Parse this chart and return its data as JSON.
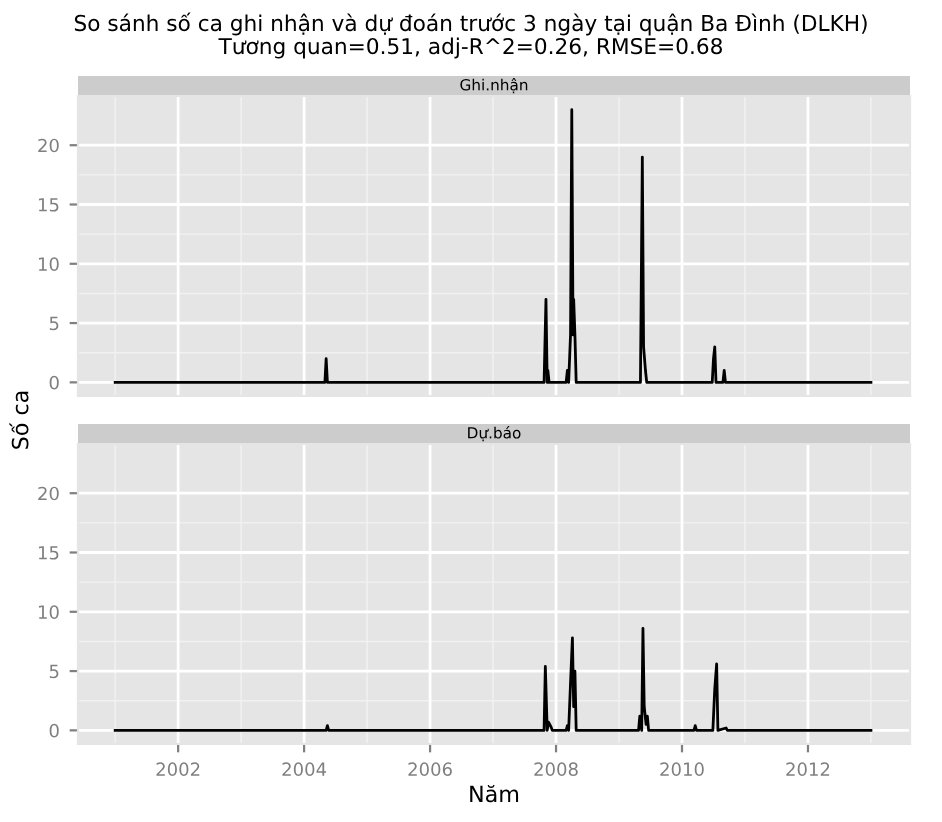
{
  "chart_data": [
    {
      "type": "line",
      "title": "So sánh số ca ghi nhận và dự đoán trước 3 ngày tại quận Ba Đình (DLKH)",
      "subtitle": "Tương quan=0.51, adj-R^2=0.26, RMSE=0.68",
      "annotations": [
        "Ghi.nhận"
      ],
      "ylabel": "Số ca",
      "series": [
        {
          "color": "#000000",
          "x": [
            2001.0,
            2004.33,
            2004.35,
            2004.37,
            2007.81,
            2007.84,
            2007.86,
            2007.87,
            2007.89,
            2008.16,
            2008.18,
            2008.2,
            2008.23,
            2008.25,
            2008.27,
            2008.28,
            2008.3,
            2008.32,
            2009.34,
            2009.37,
            2009.39,
            2009.42,
            2009.44,
            2010.48,
            2010.5,
            2010.52,
            2010.54,
            2010.65,
            2010.67,
            2010.69,
            2013.0
          ],
          "values": [
            0,
            0,
            2,
            0,
            0,
            7,
            0,
            1,
            0,
            0,
            1,
            0,
            4,
            23,
            4,
            7,
            4,
            0,
            0,
            19,
            3,
            1,
            0,
            0,
            2,
            3,
            0,
            0,
            1,
            0,
            0
          ]
        }
      ],
      "xlim": [
        2000.41,
        2013.62
      ],
      "ylim": [
        -1.15,
        24.15
      ],
      "xticks": [
        2002,
        2004,
        2006,
        2008,
        2010,
        2012
      ],
      "yticks": [
        0,
        5,
        10,
        15,
        20
      ],
      "grid": true,
      "tick_labels": "y"
    },
    {
      "type": "line",
      "annotations": [
        "Dự.báo"
      ],
      "xlabel": "Năm",
      "series": [
        {
          "color": "#000000",
          "x": [
            2001.0,
            2004.35,
            2004.37,
            2004.39,
            2007.81,
            2007.83,
            2007.86,
            2007.88,
            2007.9,
            2007.92,
            2007.94,
            2008.16,
            2008.18,
            2008.2,
            2008.23,
            2008.26,
            2008.28,
            2008.3,
            2008.32,
            2009.31,
            2009.33,
            2009.36,
            2009.38,
            2009.4,
            2009.43,
            2009.45,
            2009.47,
            2010.19,
            2010.21,
            2010.23,
            2010.49,
            2010.52,
            2010.55,
            2010.57,
            2010.7,
            2010.72,
            2013.0
          ],
          "values": [
            0,
            0,
            0.4,
            0,
            0,
            5.4,
            0,
            0.7,
            0.5,
            0.3,
            0,
            0,
            0.4,
            0,
            4,
            7.8,
            2,
            5,
            0,
            0,
            1.2,
            0,
            8.6,
            2,
            0.5,
            1.2,
            0,
            0,
            0.4,
            0,
            0,
            3.5,
            5.6,
            0,
            0.2,
            0,
            0
          ]
        }
      ],
      "xlim": [
        2000.41,
        2013.62
      ],
      "ylim": [
        -1.15,
        24.15
      ],
      "xticks": [
        2002,
        2004,
        2006,
        2008,
        2010,
        2012
      ],
      "yticks": [
        0,
        5,
        10,
        15,
        20
      ],
      "grid": true
    }
  ]
}
